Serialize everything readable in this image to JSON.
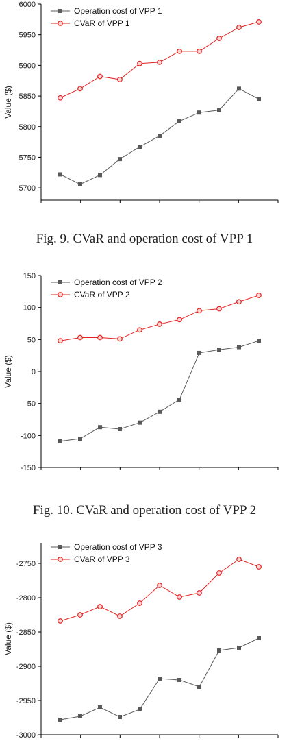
{
  "figures": [
    {
      "caption": "Fig. 9.   CVaR and operation cost of VPP 1",
      "chart_data": {
        "type": "line",
        "ylabel": "Value ($)",
        "xlabel": "",
        "ylim": [
          5680,
          6000
        ],
        "yticks": [
          5700,
          5750,
          5800,
          5850,
          5900,
          5950,
          6000
        ],
        "legend_position": "top-left",
        "series": [
          {
            "name": "Operation cost of VPP 1",
            "color": "#595959",
            "marker": "square",
            "values": [
              5722,
              5706,
              5721,
              5747,
              5767,
              5785,
              5809,
              5823,
              5827,
              5862,
              5845
            ]
          },
          {
            "name": "CVaR of VPP 1",
            "color": "#e32222",
            "marker": "circle",
            "values": [
              5847,
              5862,
              5882,
              5877,
              5903,
              5905,
              5923,
              5923,
              5944,
              5962,
              5971
            ]
          }
        ]
      }
    },
    {
      "caption": "Fig. 10. CVaR and operation cost of VPP 2",
      "chart_data": {
        "type": "line",
        "ylabel": "Value ($)",
        "xlabel": "",
        "ylim": [
          -150,
          150
        ],
        "yticks": [
          -150,
          -100,
          -50,
          0,
          50,
          100,
          150
        ],
        "legend_position": "top-left",
        "series": [
          {
            "name": "Operation cost of VPP 2",
            "color": "#595959",
            "marker": "square",
            "values": [
              -109,
              -105,
              -87,
              -90,
              -80,
              -63,
              -44,
              29,
              34,
              38,
              48
            ]
          },
          {
            "name": "CVaR of VPP 2",
            "color": "#e32222",
            "marker": "circle",
            "values": [
              48,
              53,
              53,
              51,
              65,
              74,
              81,
              95,
              98,
              109,
              119
            ]
          }
        ]
      }
    },
    {
      "caption": "",
      "chart_data": {
        "type": "line",
        "ylabel": "Value ($)",
        "xlabel": "",
        "ylim": [
          -3000,
          -2720
        ],
        "yticks": [
          -3000,
          -2950,
          -2900,
          -2850,
          -2800,
          -2750
        ],
        "legend_position": "top-left",
        "series": [
          {
            "name": "Operation cost of VPP 3",
            "color": "#595959",
            "marker": "square",
            "values": [
              -2978,
              -2973,
              -2960,
              -2974,
              -2963,
              -2918,
              -2920,
              -2930,
              -2877,
              -2873,
              -2859
            ]
          },
          {
            "name": "CVaR of VPP 3",
            "color": "#e32222",
            "marker": "circle",
            "values": [
              -2834,
              -2825,
              -2813,
              -2827,
              -2808,
              -2782,
              -2799,
              -2793,
              -2764,
              -2744,
              -2755
            ]
          }
        ]
      }
    }
  ]
}
